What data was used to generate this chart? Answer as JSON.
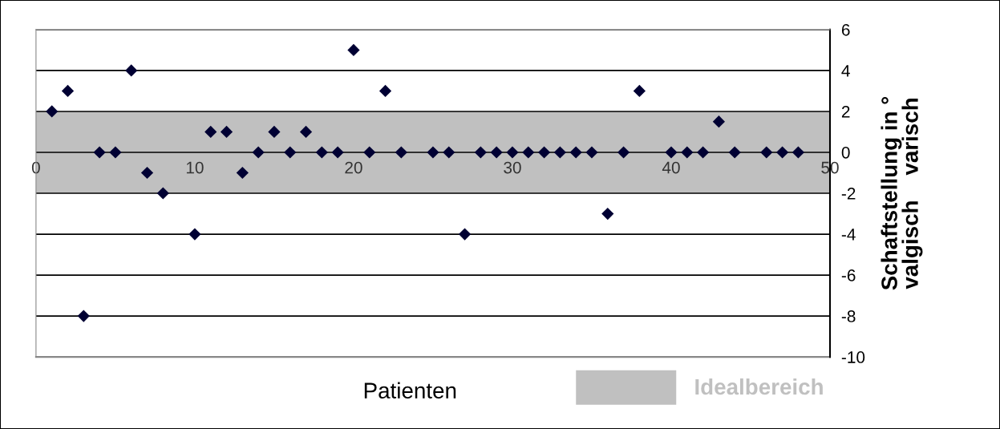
{
  "chart_data": {
    "type": "scatter",
    "xlabel": "Patienten",
    "ylabel": "Schaftstellung in °\nvalgisch    varisch",
    "x": [
      1,
      2,
      3,
      4,
      5,
      6,
      7,
      8,
      10,
      11,
      12,
      13,
      14,
      15,
      16,
      17,
      18,
      19,
      20,
      21,
      22,
      23,
      25,
      26,
      27,
      28,
      29,
      30,
      31,
      32,
      33,
      34,
      35,
      36,
      37,
      38,
      40,
      41,
      42,
      43,
      44,
      46,
      47,
      48
    ],
    "series": [
      {
        "color": "#000033",
        "values": [
          2,
          3,
          -8,
          0,
          0,
          4,
          -1,
          -2,
          -4,
          1,
          1,
          -1,
          0,
          1,
          0,
          1,
          0,
          0,
          5,
          0,
          3,
          0,
          0,
          0,
          -4,
          0,
          0,
          0,
          0,
          0,
          0,
          0,
          0,
          -3,
          0,
          3,
          0,
          0,
          0,
          1.5,
          0,
          0,
          0,
          0
        ]
      }
    ],
    "xlim": [
      0,
      50
    ],
    "xticks": [
      0,
      10,
      20,
      30,
      40,
      50
    ],
    "ylim": [
      -10,
      6
    ],
    "yticks": [
      -10,
      -8,
      -6,
      -4,
      -2,
      0,
      2,
      4,
      6
    ],
    "bands": [
      {
        "axis": "y",
        "from": -2,
        "to": 2,
        "label": "Idealbereich",
        "color": "#c0c0c0"
      }
    ],
    "grid": "y",
    "marker": "diamond",
    "legend": "bottom"
  }
}
